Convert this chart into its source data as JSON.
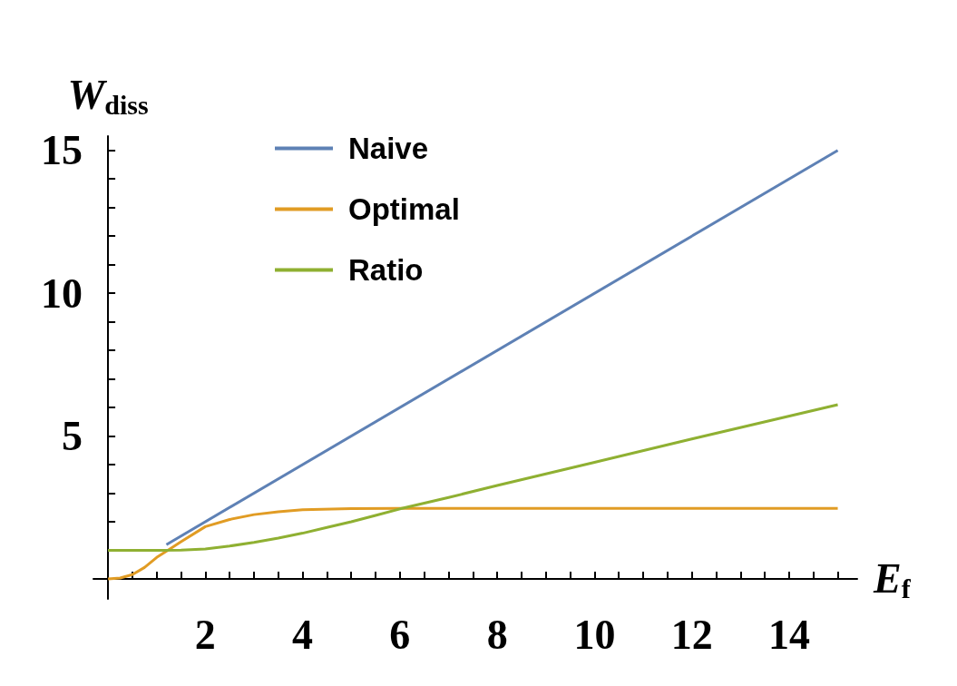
{
  "chart_data": {
    "type": "line",
    "xlabel": "E$_{f}$",
    "ylabel": "W$_{diss}$",
    "xlim": [
      -0.3,
      15.4
    ],
    "ylim": [
      -0.7,
      15.5
    ],
    "xticks": [
      {
        "value": 0.5,
        "label": null
      },
      {
        "value": 1,
        "label": null
      },
      {
        "value": 1.5,
        "label": null
      },
      2,
      {
        "value": 2.5,
        "label": null
      },
      {
        "value": 3,
        "label": null
      },
      {
        "value": 3.5,
        "label": null
      },
      4,
      {
        "value": 4.5,
        "label": null
      },
      {
        "value": 5,
        "label": null
      },
      {
        "value": 5.5,
        "label": null
      },
      6,
      {
        "value": 6.5,
        "label": null
      },
      {
        "value": 7,
        "label": null
      },
      {
        "value": 7.5,
        "label": null
      },
      8,
      {
        "value": 8.5,
        "label": null
      },
      {
        "value": 9,
        "label": null
      },
      {
        "value": 9.5,
        "label": null
      },
      10,
      {
        "value": 10.5,
        "label": null
      },
      {
        "value": 11,
        "label": null
      },
      {
        "value": 11.5,
        "label": null
      },
      12,
      {
        "value": 12.5,
        "label": null
      },
      {
        "value": 13,
        "label": null
      },
      {
        "value": 13.5,
        "label": null
      },
      14,
      {
        "value": 14.5,
        "label": null
      },
      {
        "value": 15,
        "label": null
      }
    ],
    "yticks": [
      {
        "value": 1,
        "label": null
      },
      {
        "value": 2,
        "label": null
      },
      {
        "value": 3,
        "label": null
      },
      {
        "value": 4,
        "label": null
      },
      5,
      {
        "value": 6,
        "label": null
      },
      {
        "value": 7,
        "label": null
      },
      {
        "value": 8,
        "label": null
      },
      {
        "value": 9,
        "label": null
      },
      10,
      {
        "value": 11,
        "label": null
      },
      {
        "value": 12,
        "label": null
      },
      {
        "value": 13,
        "label": null
      },
      {
        "value": 14,
        "label": null
      },
      15
    ],
    "grid": false,
    "legend": "top left",
    "marker": "none",
    "line_style": "solid",
    "series": [
      {
        "name": "Naive",
        "color": "#5e81b5",
        "x": [
          1.2,
          15
        ],
        "values": [
          1.2,
          15
        ]
      },
      {
        "name": "Optimal",
        "color": "#e19c24",
        "x": [
          0,
          0.25,
          0.5,
          0.75,
          1,
          1.25,
          1.5,
          2,
          2.5,
          3,
          3.5,
          4,
          5,
          6,
          8,
          10,
          12,
          15
        ],
        "values": [
          0,
          0.03,
          0.15,
          0.4,
          0.75,
          1.02,
          1.3,
          1.83,
          2.08,
          2.25,
          2.35,
          2.42,
          2.46,
          2.47,
          2.47,
          2.47,
          2.47,
          2.47
        ]
      },
      {
        "name": "Ratio",
        "color": "#8fb032",
        "x": [
          0,
          0.5,
          1,
          1.5,
          2,
          2.5,
          3,
          3.5,
          4,
          4.5,
          5,
          5.5,
          6,
          7,
          8,
          10,
          12,
          15
        ],
        "values": [
          1,
          1,
          1,
          1.01,
          1.05,
          1.15,
          1.28,
          1.43,
          1.6,
          1.8,
          2.0,
          2.22,
          2.45,
          2.85,
          3.27,
          4.08,
          4.9,
          6.1
        ]
      }
    ]
  }
}
